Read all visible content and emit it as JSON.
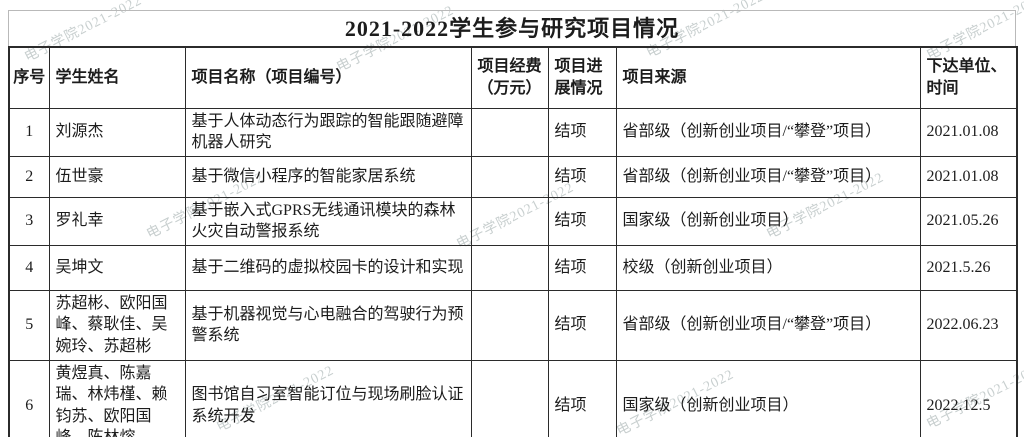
{
  "title": "2021-2022学生参与研究项目情况",
  "watermark_text": "电子学院2021-2022",
  "table": {
    "headers": [
      "序号",
      "学生姓名",
      "项目名称（项目编号）",
      "项目经费（万元）",
      "项目进展情况",
      "项目来源",
      "下达单位、时间"
    ],
    "rows": [
      {
        "no": "1",
        "students": "刘源杰",
        "project": "基于人体动态行为跟踪的智能跟随避障机器人研究",
        "funding": "",
        "progress": "结项",
        "source": "省部级（创新创业项目/“攀登”项目）",
        "unit_time": "2021.01.08"
      },
      {
        "no": "2",
        "students": "伍世豪",
        "project": "基于微信小程序的智能家居系统",
        "funding": "",
        "progress": "结项",
        "source": "省部级（创新创业项目/“攀登”项目）",
        "unit_time": "2021.01.08"
      },
      {
        "no": "3",
        "students": "罗礼幸",
        "project": "基于嵌入式GPRS无线通讯模块的森林火灾自动警报系统",
        "funding": "",
        "progress": "结项",
        "source": "国家级（创新创业项目）",
        "unit_time": "2021.05.26"
      },
      {
        "no": "4",
        "students": "吴坤文",
        "project": "基于二维码的虚拟校园卡的设计和实现",
        "funding": "",
        "progress": "结项",
        "source": "校级（创新创业项目）",
        "unit_time": "2021.5.26"
      },
      {
        "no": "5",
        "students": "苏超彬、欧阳国峰、蔡耿佳、吴婉玲、苏超彬",
        "project": "基于机器视觉与心电融合的驾驶行为预警系统",
        "funding": "",
        "progress": "结项",
        "source": "省部级（创新创业项目/“攀登”项目）",
        "unit_time": "2022.06.23"
      },
      {
        "no": "6",
        "students": "黄煜真、陈嘉瑞、林炜槿、赖钧苏、欧阳国峰、陈林熔",
        "project": "图书馆自习室智能订位与现场刷脸认证系统开发",
        "funding": "",
        "progress": "结项",
        "source": "国家级（创新创业项目）",
        "unit_time": "2022.12.5"
      }
    ]
  }
}
